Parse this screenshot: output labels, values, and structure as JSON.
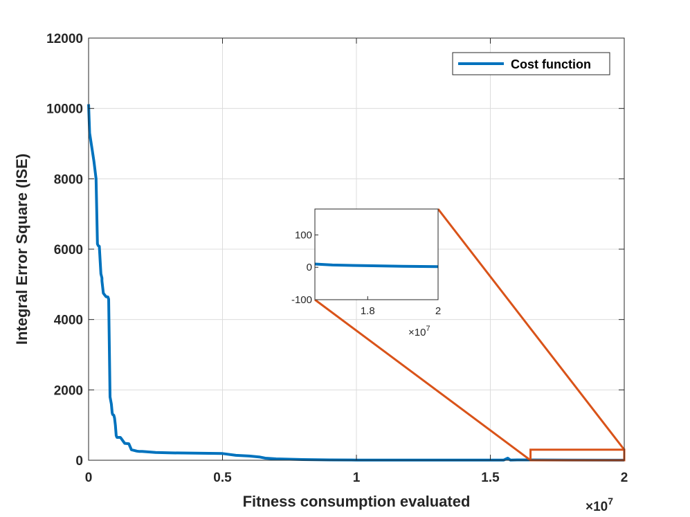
{
  "chart_data": {
    "type": "line",
    "xlabel": "Fitness consumption evaluated",
    "ylabel": "Integral Error Square (ISE)",
    "x_exponent_base": "×10",
    "x_exponent_power": "7",
    "xlim": [
      0,
      2
    ],
    "ylim": [
      0,
      12000
    ],
    "xticks": [
      0,
      0.5,
      1,
      1.5,
      2
    ],
    "xtick_labels": [
      "0",
      "0.5",
      "1",
      "1.5",
      "2"
    ],
    "yticks": [
      0,
      2000,
      4000,
      6000,
      8000,
      10000,
      12000
    ],
    "ytick_labels": [
      "0",
      "2000",
      "4000",
      "6000",
      "8000",
      "10000",
      "12000"
    ],
    "grid": true,
    "legend": {
      "position": "top-right",
      "entries": [
        "Cost function"
      ]
    },
    "series": [
      {
        "name": "Cost function",
        "color": "#0072BD",
        "x": [
          0,
          0.004,
          0.012,
          0.02,
          0.028,
          0.033,
          0.036,
          0.04,
          0.046,
          0.05,
          0.05,
          0.055,
          0.058,
          0.06,
          0.065,
          0.072,
          0.075,
          0.08,
          0.085,
          0.088,
          0.09,
          0.094,
          0.097,
          0.1,
          0.103,
          0.106,
          0.112,
          0.116,
          0.118,
          0.12,
          0.135,
          0.15,
          0.16,
          0.18,
          0.19,
          0.2,
          0.25,
          0.3,
          0.4,
          0.5,
          0.55,
          0.6,
          0.64,
          0.66,
          0.7,
          0.8,
          0.9,
          1.0,
          1.2,
          1.4,
          1.55,
          1.565,
          1.575,
          1.6,
          1.8,
          2.0
        ],
        "y": [
          10120,
          9300,
          8900,
          8500,
          8000,
          6150,
          6100,
          6080,
          5300,
          5180,
          5100,
          4750,
          4720,
          4700,
          4650,
          4640,
          4580,
          1800,
          1600,
          1350,
          1300,
          1280,
          1200,
          1000,
          700,
          650,
          650,
          650,
          650,
          640,
          480,
          470,
          300,
          260,
          250,
          250,
          220,
          210,
          200,
          190,
          140,
          120,
          90,
          60,
          40,
          20,
          10,
          5,
          5,
          5,
          5,
          60,
          5,
          10,
          5,
          2
        ]
      }
    ],
    "inset": {
      "xlim": [
        1.65,
        2
      ],
      "ylim": [
        -100,
        180
      ],
      "xticks": [
        1.8,
        2
      ],
      "xtick_labels": [
        "1.8",
        "2"
      ],
      "yticks": [
        -100,
        0,
        100
      ],
      "ytick_labels": [
        "-100",
        "0",
        "100"
      ],
      "x_exponent_base": "×10",
      "x_exponent_power": "7",
      "x": [
        1.65,
        1.7,
        1.8,
        1.9,
        2.0
      ],
      "y": [
        10,
        7,
        5,
        3,
        2
      ],
      "zoom_region": {
        "x": [
          1.65,
          2
        ],
        "y": [
          0,
          300
        ]
      },
      "zoom_color": "#D95319"
    }
  }
}
